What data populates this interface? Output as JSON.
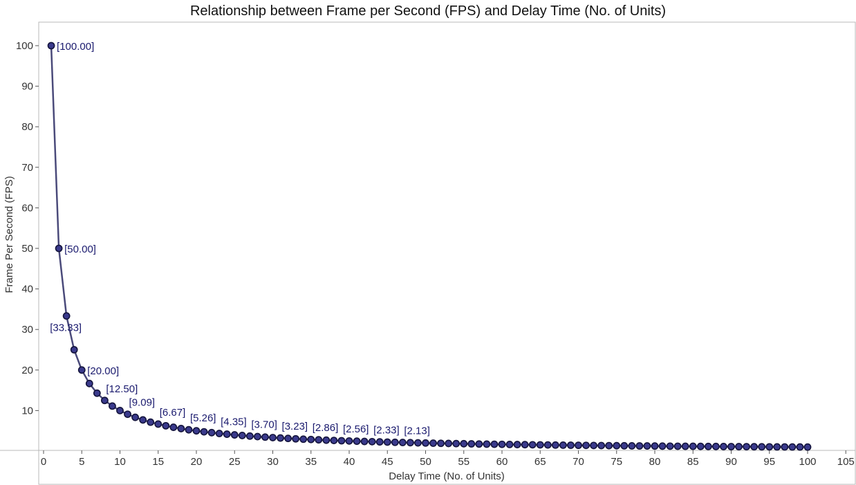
{
  "chart_data": {
    "type": "line",
    "title": "Relationship between Frame per Second (FPS) and Delay Time (No. of Units)",
    "xlabel": "Delay Time (No. of Units)",
    "ylabel": "Frame Per Second (FPS)",
    "xlim": [
      -0.5,
      106
    ],
    "ylim": [
      -10,
      106
    ],
    "x_ticks": [
      0,
      5,
      10,
      15,
      20,
      25,
      30,
      35,
      40,
      45,
      50,
      55,
      60,
      65,
      70,
      75,
      80,
      85,
      90,
      95,
      100,
      105
    ],
    "x_tick_labels": [
      "0",
      "5",
      "10",
      "15",
      "20",
      "25",
      "30",
      "35",
      "40",
      "45",
      "50",
      "55",
      "60",
      "65",
      "70",
      "75",
      "80",
      "85",
      "90",
      "95",
      "100",
      "105"
    ],
    "y_ticks": [
      10,
      20,
      30,
      40,
      50,
      60,
      70,
      80,
      90,
      100
    ],
    "y_tick_labels": [
      "10",
      "20",
      "30",
      "40",
      "50",
      "60",
      "70",
      "80",
      "90",
      "100"
    ],
    "grid": false,
    "colors": {
      "line": "#4a4a7a",
      "marker_fill": "#3a3a8c",
      "marker_stroke": "#14143c",
      "label": "#1a1a6e",
      "frame": "#b8b8b8"
    },
    "series": [
      {
        "x": [
          1,
          2,
          3,
          4,
          5,
          6,
          7,
          8,
          9,
          10,
          11,
          12,
          13,
          14,
          15,
          16,
          17,
          18,
          19,
          20,
          21,
          22,
          23,
          24,
          25,
          26,
          27,
          28,
          29,
          30,
          31,
          32,
          33,
          34,
          35,
          36,
          37,
          38,
          39,
          40,
          41,
          42,
          43,
          44,
          45,
          46,
          47,
          48,
          49,
          50,
          51,
          52,
          53,
          54,
          55,
          56,
          57,
          58,
          59,
          60,
          61,
          62,
          63,
          64,
          65,
          66,
          67,
          68,
          69,
          70,
          71,
          72,
          73,
          74,
          75,
          76,
          77,
          78,
          79,
          80,
          81,
          82,
          83,
          84,
          85,
          86,
          87,
          88,
          89,
          90,
          91,
          92,
          93,
          94,
          95,
          96,
          97,
          98,
          99,
          100
        ],
        "values": [
          100.0,
          50.0,
          33.33,
          25.0,
          20.0,
          16.67,
          14.29,
          12.5,
          11.11,
          10.0,
          9.09,
          8.33,
          7.69,
          7.14,
          6.67,
          6.25,
          5.88,
          5.56,
          5.26,
          5.0,
          4.76,
          4.55,
          4.35,
          4.17,
          4.0,
          3.85,
          3.7,
          3.57,
          3.45,
          3.33,
          3.23,
          3.13,
          3.03,
          2.94,
          2.86,
          2.78,
          2.7,
          2.63,
          2.56,
          2.5,
          2.44,
          2.38,
          2.33,
          2.27,
          2.22,
          2.17,
          2.13,
          2.08,
          2.04,
          2.0,
          1.96,
          1.92,
          1.89,
          1.85,
          1.82,
          1.79,
          1.75,
          1.72,
          1.69,
          1.67,
          1.64,
          1.61,
          1.59,
          1.56,
          1.54,
          1.52,
          1.49,
          1.47,
          1.45,
          1.43,
          1.41,
          1.39,
          1.37,
          1.35,
          1.33,
          1.32,
          1.3,
          1.28,
          1.27,
          1.25,
          1.23,
          1.22,
          1.2,
          1.19,
          1.18,
          1.16,
          1.15,
          1.14,
          1.12,
          1.11,
          1.1,
          1.09,
          1.08,
          1.06,
          1.05,
          1.04,
          1.03,
          1.02,
          1.01,
          1.0
        ]
      }
    ],
    "data_labels": [
      {
        "x": 1,
        "text": "[100.00]"
      },
      {
        "x": 2,
        "text": "[50.00]"
      },
      {
        "x": 3,
        "text": "[33.33]"
      },
      {
        "x": 5,
        "text": "[20.00]"
      },
      {
        "x": 8,
        "text": "[12.50]"
      },
      {
        "x": 11,
        "text": "[9.09]"
      },
      {
        "x": 15,
        "text": "[6.67]"
      },
      {
        "x": 19,
        "text": "[5.26]"
      },
      {
        "x": 23,
        "text": "[4.35]"
      },
      {
        "x": 27,
        "text": "[3.70]"
      },
      {
        "x": 31,
        "text": "[3.23]"
      },
      {
        "x": 35,
        "text": "[2.86]"
      },
      {
        "x": 39,
        "text": "[2.56]"
      },
      {
        "x": 43,
        "text": "[2.33]"
      },
      {
        "x": 47,
        "text": "[2.13]"
      }
    ]
  }
}
